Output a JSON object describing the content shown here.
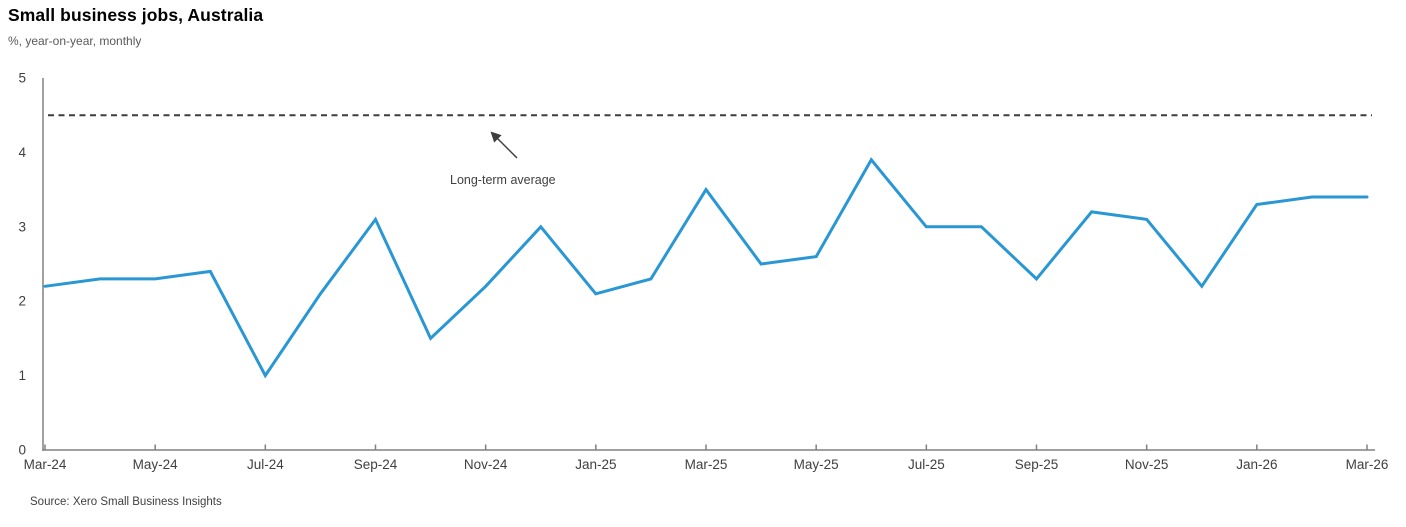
{
  "header": {
    "title": "Small business jobs, Australia",
    "subtitle": "%, year-on-year, monthly"
  },
  "footer": {
    "source": "Source: Xero Small Business Insights"
  },
  "colors": {
    "line": "#2997d4",
    "reference": "#3d3d3d",
    "axis": "#808080",
    "axis_text": "#404040",
    "subtitle_text": "#595959"
  },
  "chart_data": {
    "type": "line",
    "title": "Small business jobs, Australia",
    "subtitle": "%, year-on-year, monthly",
    "source": "Source: Xero Small Business Insights",
    "x": [
      "Mar-24",
      "Apr-24",
      "May-24",
      "Jun-24",
      "Jul-24",
      "Aug-24",
      "Sep-24",
      "Oct-24",
      "Nov-24",
      "Dec-24",
      "Jan-25",
      "Feb-25",
      "Mar-25",
      "Apr-25",
      "May-25",
      "Jun-25",
      "Jul-25",
      "Aug-25",
      "Sep-25",
      "Oct-25",
      "Nov-25",
      "Dec-25",
      "Jan-26",
      "Feb-26",
      "Mar-26"
    ],
    "values": [
      2.2,
      2.3,
      2.3,
      2.4,
      1.0,
      2.1,
      3.1,
      1.5,
      2.2,
      3.0,
      2.1,
      2.3,
      3.5,
      2.5,
      2.6,
      3.9,
      3.0,
      3.0,
      2.3,
      3.2,
      3.1,
      2.2,
      3.3,
      3.4,
      3.4
    ],
    "reference_line": {
      "label": "Long-term average",
      "value": 4.5,
      "style": "dashed"
    },
    "ylim": [
      0,
      5
    ],
    "yticks": [
      0,
      1,
      2,
      3,
      4,
      5
    ],
    "xtick_labels": [
      "Mar-24",
      "May-24",
      "Jul-24",
      "Sep-24",
      "Nov-24",
      "Jan-25",
      "Mar-25",
      "May-25",
      "Jul-25",
      "Sep-25",
      "Nov-25",
      "Jan-26",
      "Mar-26"
    ],
    "grid": false,
    "legend": "none"
  }
}
